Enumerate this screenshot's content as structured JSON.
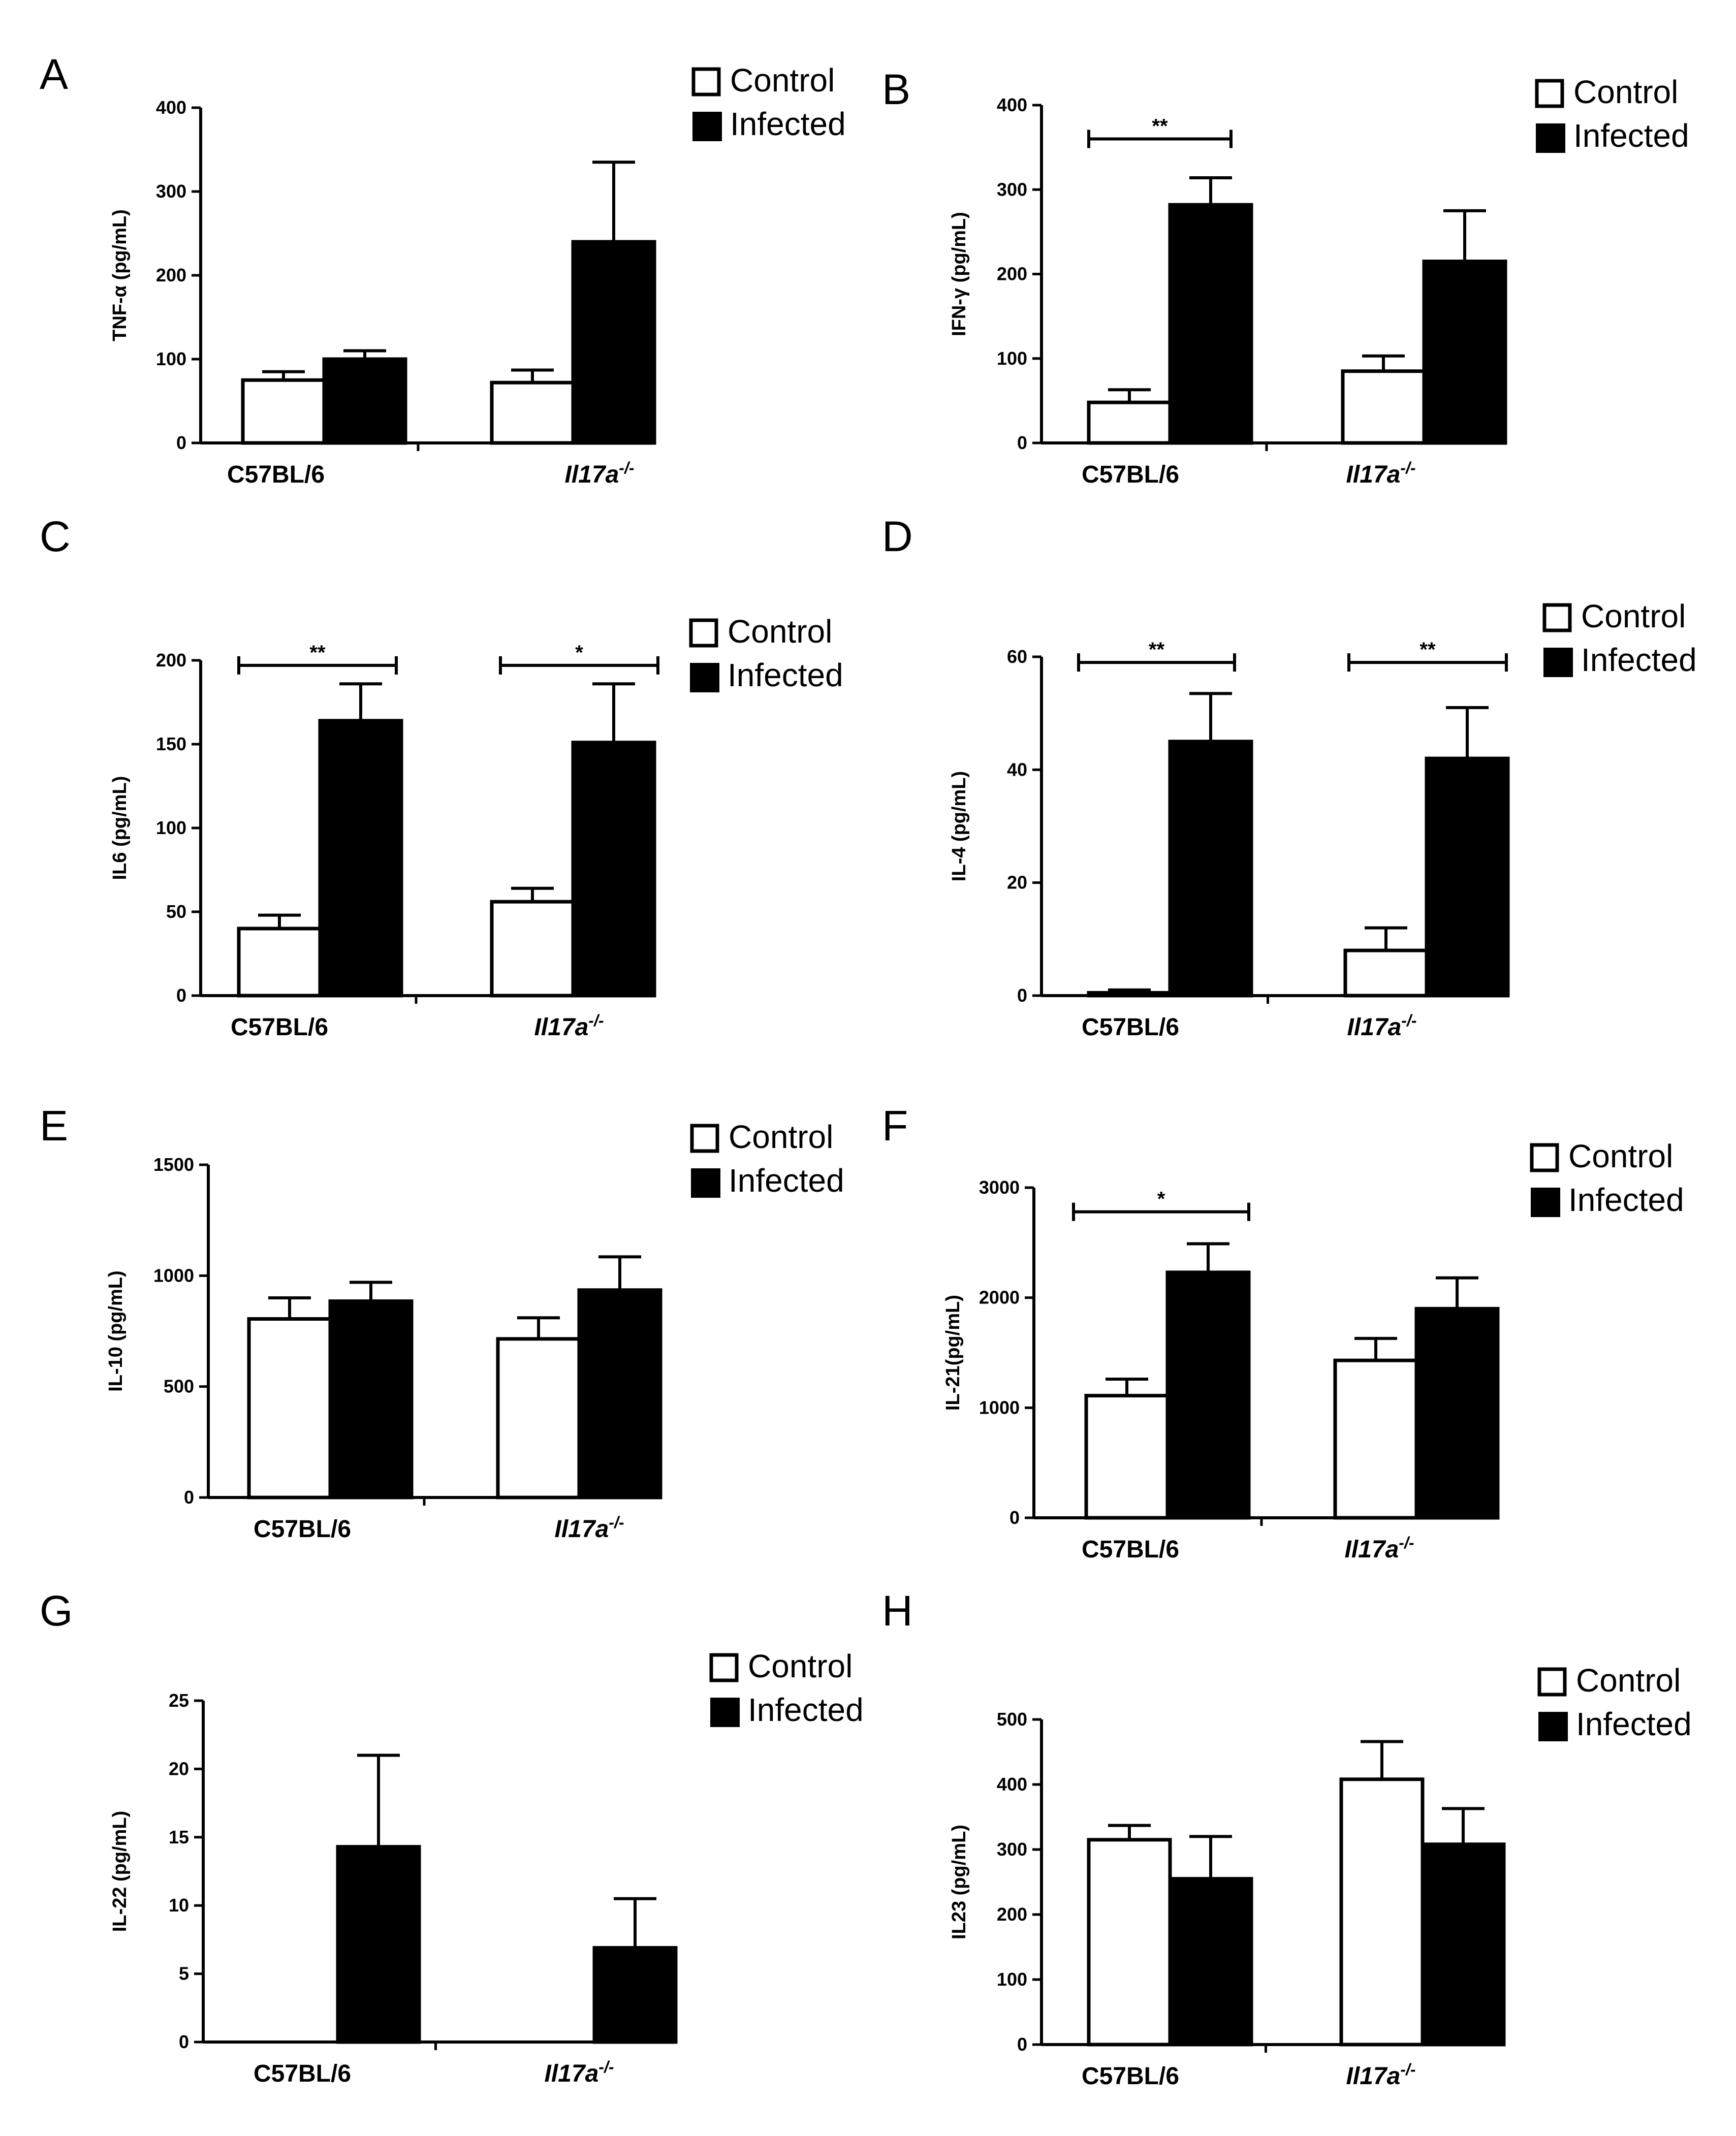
{
  "figure": {
    "legend": {
      "control": "Control",
      "infected": "Infected"
    },
    "colors": {
      "control": "#ffffff",
      "infected": "#000000",
      "stroke": "#000000"
    }
  },
  "chart_data": [
    {
      "panel": "A",
      "type": "bar",
      "categories": [
        "C57BL/6",
        "Il17a"
      ],
      "category_superscripts": [
        "",
        "-/-"
      ],
      "ylabel": "TNF-α (pg/mL)",
      "ylim": [
        0,
        400
      ],
      "yticks": [
        0,
        100,
        200,
        300,
        400
      ],
      "series": [
        {
          "name": "Control",
          "values": [
            75,
            72
          ],
          "errors": [
            10,
            15
          ]
        },
        {
          "name": "Infected",
          "values": [
            100,
            240
          ],
          "errors": [
            10,
            95
          ]
        }
      ],
      "significance": []
    },
    {
      "panel": "B",
      "type": "bar",
      "categories": [
        "C57BL/6",
        "Il17a"
      ],
      "category_superscripts": [
        "",
        "-/-"
      ],
      "ylabel": "IFN-γ (pg/mL)",
      "ylim": [
        0,
        400
      ],
      "yticks": [
        0,
        100,
        200,
        300,
        400
      ],
      "series": [
        {
          "name": "Control",
          "values": [
            48,
            85
          ],
          "errors": [
            15,
            18
          ]
        },
        {
          "name": "Infected",
          "values": [
            282,
            215
          ],
          "errors": [
            32,
            60
          ]
        }
      ],
      "significance": [
        {
          "group": 0,
          "label": "**",
          "y": 360
        }
      ]
    },
    {
      "panel": "C",
      "type": "bar",
      "categories": [
        "C57BL/6",
        "Il17a"
      ],
      "category_superscripts": [
        "",
        "-/-"
      ],
      "ylabel": "IL6 (pg/mL)",
      "ylim": [
        0,
        200
      ],
      "yticks": [
        0,
        50,
        100,
        150,
        200
      ],
      "series": [
        {
          "name": "Control",
          "values": [
            40,
            56
          ],
          "errors": [
            8,
            8
          ]
        },
        {
          "name": "Infected",
          "values": [
            164,
            151
          ],
          "errors": [
            22,
            35
          ]
        }
      ],
      "significance": [
        {
          "group": 0,
          "label": "**",
          "y": 197
        },
        {
          "group": 1,
          "label": "*",
          "y": 197
        }
      ]
    },
    {
      "panel": "D",
      "type": "bar",
      "categories": [
        "C57BL/6",
        "Il17a"
      ],
      "category_superscripts": [
        "",
        "-/-"
      ],
      "ylabel": "IL-4 (pg/mL)",
      "ylim": [
        0,
        60
      ],
      "yticks": [
        0,
        20,
        40,
        60
      ],
      "series": [
        {
          "name": "Control",
          "values": [
            0.5,
            8
          ],
          "errors": [
            0.5,
            4
          ]
        },
        {
          "name": "Infected",
          "values": [
            45,
            42
          ],
          "errors": [
            8.5,
            9
          ]
        }
      ],
      "significance": [
        {
          "group": 0,
          "label": "**",
          "y": 59
        },
        {
          "group": 1,
          "label": "**",
          "y": 59
        }
      ]
    },
    {
      "panel": "E",
      "type": "bar",
      "categories": [
        "C57BL/6",
        "Il17a"
      ],
      "category_superscripts": [
        "",
        "-/-"
      ],
      "ylabel": "IL-10 (pg/mL)",
      "ylim": [
        0,
        1500
      ],
      "yticks": [
        0,
        500,
        1000,
        1500
      ],
      "series": [
        {
          "name": "Control",
          "values": [
            805,
            715
          ],
          "errors": [
            95,
            95
          ]
        },
        {
          "name": "Infected",
          "values": [
            885,
            935
          ],
          "errors": [
            85,
            150
          ]
        }
      ],
      "significance": []
    },
    {
      "panel": "F",
      "type": "bar",
      "categories": [
        "C57BL/6",
        "Il17a"
      ],
      "category_superscripts": [
        "",
        "-/-"
      ],
      "ylabel": "IL-21(pg/mL)",
      "ylim": [
        0,
        3000
      ],
      "yticks": [
        0,
        1000,
        2000,
        3000
      ],
      "series": [
        {
          "name": "Control",
          "values": [
            1110,
            1430
          ],
          "errors": [
            150,
            200
          ]
        },
        {
          "name": "Infected",
          "values": [
            2230,
            1900
          ],
          "errors": [
            260,
            280
          ]
        }
      ],
      "significance": [
        {
          "group": 0,
          "label": "*",
          "y": 2780
        }
      ]
    },
    {
      "panel": "G",
      "type": "bar",
      "categories": [
        "C57BL/6",
        "Il17a"
      ],
      "category_superscripts": [
        "",
        "-/-"
      ],
      "ylabel": "IL-22 (pg/mL)",
      "ylim": [
        0,
        25
      ],
      "yticks": [
        0,
        5,
        10,
        15,
        20,
        25
      ],
      "series": [
        {
          "name": "Control",
          "values": [
            0,
            0
          ],
          "errors": [
            0,
            0
          ]
        },
        {
          "name": "Infected",
          "values": [
            14.3,
            6.9
          ],
          "errors": [
            6.7,
            3.6
          ]
        }
      ],
      "significance": []
    },
    {
      "panel": "H",
      "type": "bar",
      "categories": [
        "C57BL/6",
        "Il17a"
      ],
      "category_superscripts": [
        "",
        "-/-"
      ],
      "ylabel": "IL23 (pg/mL)",
      "ylim": [
        0,
        500
      ],
      "yticks": [
        0,
        100,
        200,
        300,
        400,
        500
      ],
      "series": [
        {
          "name": "Control",
          "values": [
            315,
            408
          ],
          "errors": [
            22,
            58
          ]
        },
        {
          "name": "Infected",
          "values": [
            255,
            308
          ],
          "errors": [
            65,
            55
          ]
        }
      ],
      "significance": []
    }
  ]
}
